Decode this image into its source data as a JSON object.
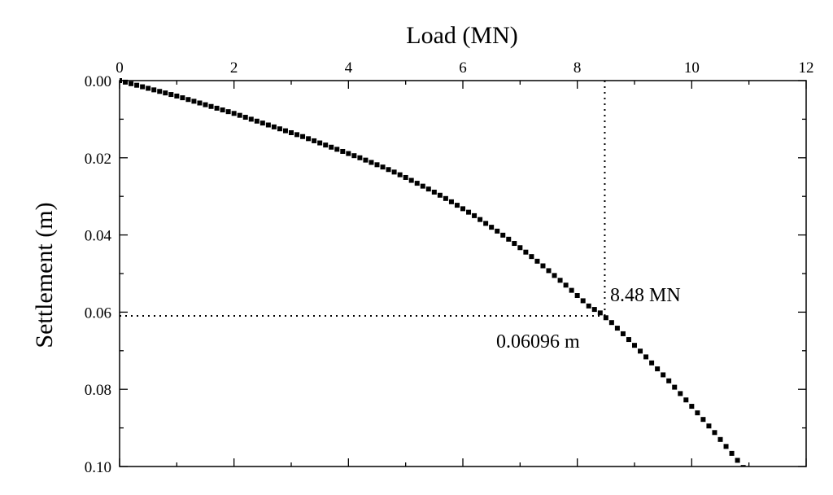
{
  "chart_data": {
    "type": "scatter",
    "xlabel": "Load (MN)",
    "ylabel": "Settlement (m)",
    "xlim": [
      0,
      12
    ],
    "ylim": [
      0,
      0.1
    ],
    "y_inverted": true,
    "x_axis_position": "top",
    "grid": false,
    "legend": "none",
    "marker_color": "#000000",
    "x_ticks": [
      "0",
      "2",
      "4",
      "6",
      "8",
      "10",
      "12"
    ],
    "y_ticks": [
      "0.00",
      "0.02",
      "0.04",
      "0.06",
      "0.08",
      "0.10"
    ],
    "series": [
      {
        "x": [
          0,
          0.2,
          0.4,
          0.6,
          0.8,
          1.0,
          1.2,
          1.4,
          1.6,
          1.8,
          2.0,
          2.2,
          2.4,
          2.6,
          2.8,
          3.0,
          3.2,
          3.4,
          3.6,
          3.8,
          4.0,
          4.2,
          4.4,
          4.6,
          4.8,
          5.0,
          5.2,
          5.4,
          5.6,
          5.8,
          6.0,
          6.2,
          6.4,
          6.6,
          6.8,
          7.0,
          7.2,
          7.4,
          7.6,
          7.8,
          8.0,
          8.2,
          8.4,
          8.6,
          8.8,
          9.0,
          9.2,
          9.4,
          9.6,
          9.8,
          10.0,
          10.2,
          10.4,
          10.6,
          10.8,
          11.0,
          11.1
        ],
        "y": [
          0,
          0.0008,
          0.0016,
          0.0024,
          0.0032,
          0.004,
          0.0049,
          0.0058,
          0.0067,
          0.0076,
          0.0085,
          0.0095,
          0.0105,
          0.0115,
          0.0125,
          0.0135,
          0.0145,
          0.0156,
          0.0167,
          0.0178,
          0.0189,
          0.02,
          0.0212,
          0.0224,
          0.0237,
          0.0251,
          0.0266,
          0.0281,
          0.0297,
          0.0314,
          0.0332,
          0.035,
          0.037,
          0.039,
          0.0411,
          0.0433,
          0.0456,
          0.048,
          0.0505,
          0.053,
          0.0557,
          0.0584,
          0.0602,
          0.0627,
          0.0656,
          0.0686,
          0.0716,
          0.0747,
          0.0778,
          0.0811,
          0.0844,
          0.0878,
          0.0912,
          0.0948,
          0.0984,
          0.1021,
          0.104
        ]
      }
    ],
    "annotations": [
      {
        "text": "8.48 MN",
        "x": 8.48
      },
      {
        "text": "0.06096 m",
        "y": 0.06096
      }
    ]
  }
}
